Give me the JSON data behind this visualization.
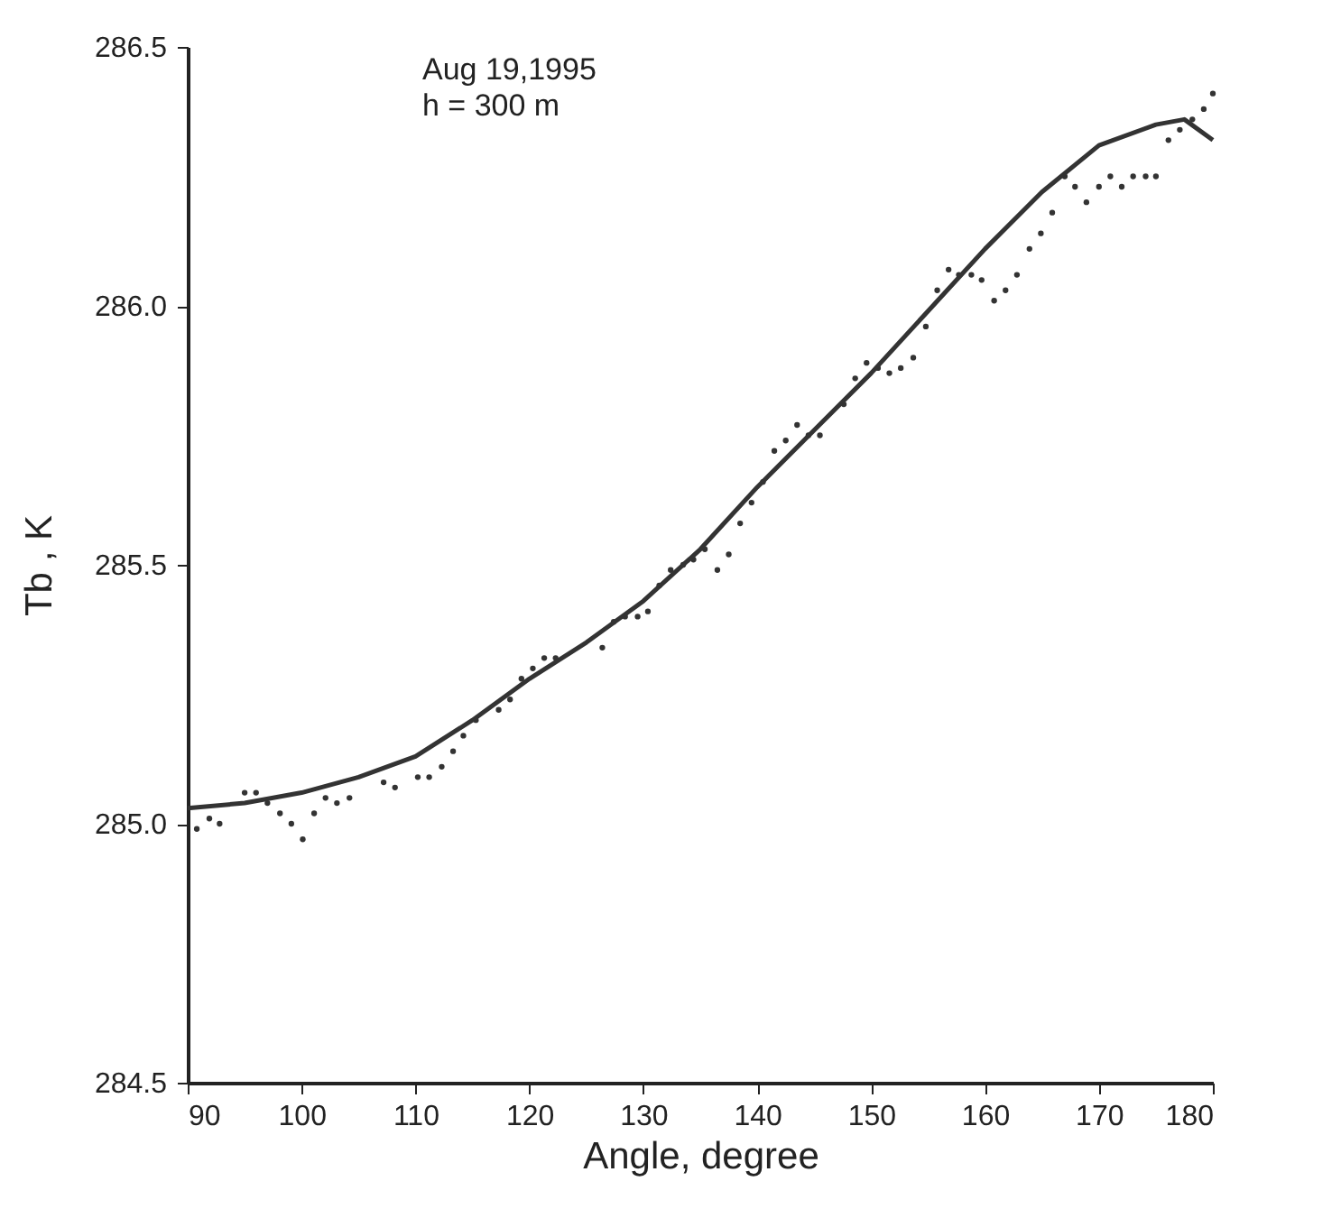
{
  "chart_data": {
    "type": "scatter",
    "xlabel": "Angle, degree",
    "ylabel": "Tb , K",
    "annotations": [
      "Aug 19,1995",
      "h = 300 m"
    ],
    "xlim": [
      90,
      180
    ],
    "xticks": [
      90,
      100,
      110,
      120,
      130,
      140,
      150,
      160,
      170,
      180
    ],
    "ylim": [
      284.5,
      286.5
    ],
    "yticks": [
      {
        "value": 284.5,
        "label": "284.5"
      },
      {
        "value": 285,
        "label": "285.0"
      },
      {
        "value": 285.5,
        "label": "285.5"
      },
      {
        "value": 286,
        "label": "286.0"
      },
      {
        "value": 286.5,
        "label": "286.5"
      }
    ],
    "grid": false,
    "legend": false,
    "series": [
      {
        "type": "scatter",
        "color": "#333333",
        "marker": "circle",
        "x": [
          90.8,
          91.9,
          92.8,
          95.0,
          96.0,
          97.0,
          98.1,
          99.1,
          100.1,
          101.1,
          102.1,
          103.1,
          104.2,
          107.2,
          108.2,
          110.2,
          111.2,
          112.3,
          113.3,
          114.2,
          115.3,
          117.3,
          118.3,
          119.3,
          120.3,
          121.3,
          122.3,
          126.4,
          127.4,
          128.4,
          129.5,
          130.4,
          131.4,
          132.4,
          133.5,
          134.4,
          135.4,
          136.5,
          137.5,
          138.5,
          139.5,
          140.5,
          141.5,
          142.5,
          143.5,
          144.5,
          145.5,
          147.6,
          148.6,
          149.6,
          150.6,
          151.6,
          152.6,
          153.7,
          154.8,
          155.8,
          156.8,
          157.7,
          158.8,
          159.7,
          160.8,
          161.8,
          162.8,
          163.9,
          164.9,
          165.9,
          167.0,
          167.9,
          168.9,
          170.0,
          171.0,
          172.0,
          173.0,
          174.1,
          175.0,
          176.1,
          177.1,
          178.2,
          179.2,
          180.0
        ],
        "values": [
          284.99,
          285.01,
          285.0,
          285.06,
          285.06,
          285.04,
          285.02,
          285.0,
          284.97,
          285.02,
          285.05,
          285.04,
          285.05,
          285.08,
          285.07,
          285.09,
          285.09,
          285.11,
          285.14,
          285.17,
          285.2,
          285.22,
          285.24,
          285.28,
          285.3,
          285.32,
          285.32,
          285.34,
          285.39,
          285.4,
          285.4,
          285.41,
          285.46,
          285.49,
          285.5,
          285.51,
          285.53,
          285.49,
          285.52,
          285.58,
          285.62,
          285.66,
          285.72,
          285.74,
          285.77,
          285.75,
          285.75,
          285.81,
          285.86,
          285.89,
          285.88,
          285.87,
          285.88,
          285.9,
          285.96,
          286.03,
          286.07,
          286.06,
          286.06,
          286.05,
          286.01,
          286.03,
          286.06,
          286.11,
          286.14,
          286.18,
          286.25,
          286.23,
          286.2,
          286.23,
          286.25,
          286.23,
          286.25,
          286.25,
          286.25,
          286.32,
          286.34,
          286.36,
          286.38,
          286.41
        ]
      },
      {
        "type": "line",
        "color": "#333333",
        "marker": "none",
        "line_style": "solid",
        "x": [
          90,
          95,
          100,
          105,
          110,
          115,
          120,
          125,
          130,
          135,
          140,
          145,
          150,
          155,
          160,
          165,
          170,
          175,
          177.5,
          180
        ],
        "values": [
          285.03,
          285.04,
          285.06,
          285.09,
          285.13,
          285.2,
          285.28,
          285.35,
          285.43,
          285.53,
          285.65,
          285.76,
          285.87,
          285.99,
          286.11,
          286.22,
          286.31,
          286.35,
          286.36,
          286.32
        ]
      }
    ]
  }
}
